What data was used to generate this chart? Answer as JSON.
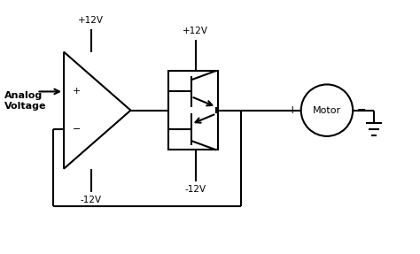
{
  "bg_color": "#ffffff",
  "line_color": "#000000",
  "line_width": 1.5,
  "fig_width": 4.74,
  "fig_height": 2.87,
  "dpi": 100,
  "analog_voltage_label": "Analog\nVoltage",
  "plus12v_opamp_label": "+12V",
  "minus12v_opamp_label": "-12V",
  "plus12v_transistor_label": "+12V",
  "minus12v_transistor_label": "-12V",
  "motor_label": "Motor",
  "xlim": [
    0,
    10
  ],
  "ylim": [
    0,
    6
  ]
}
